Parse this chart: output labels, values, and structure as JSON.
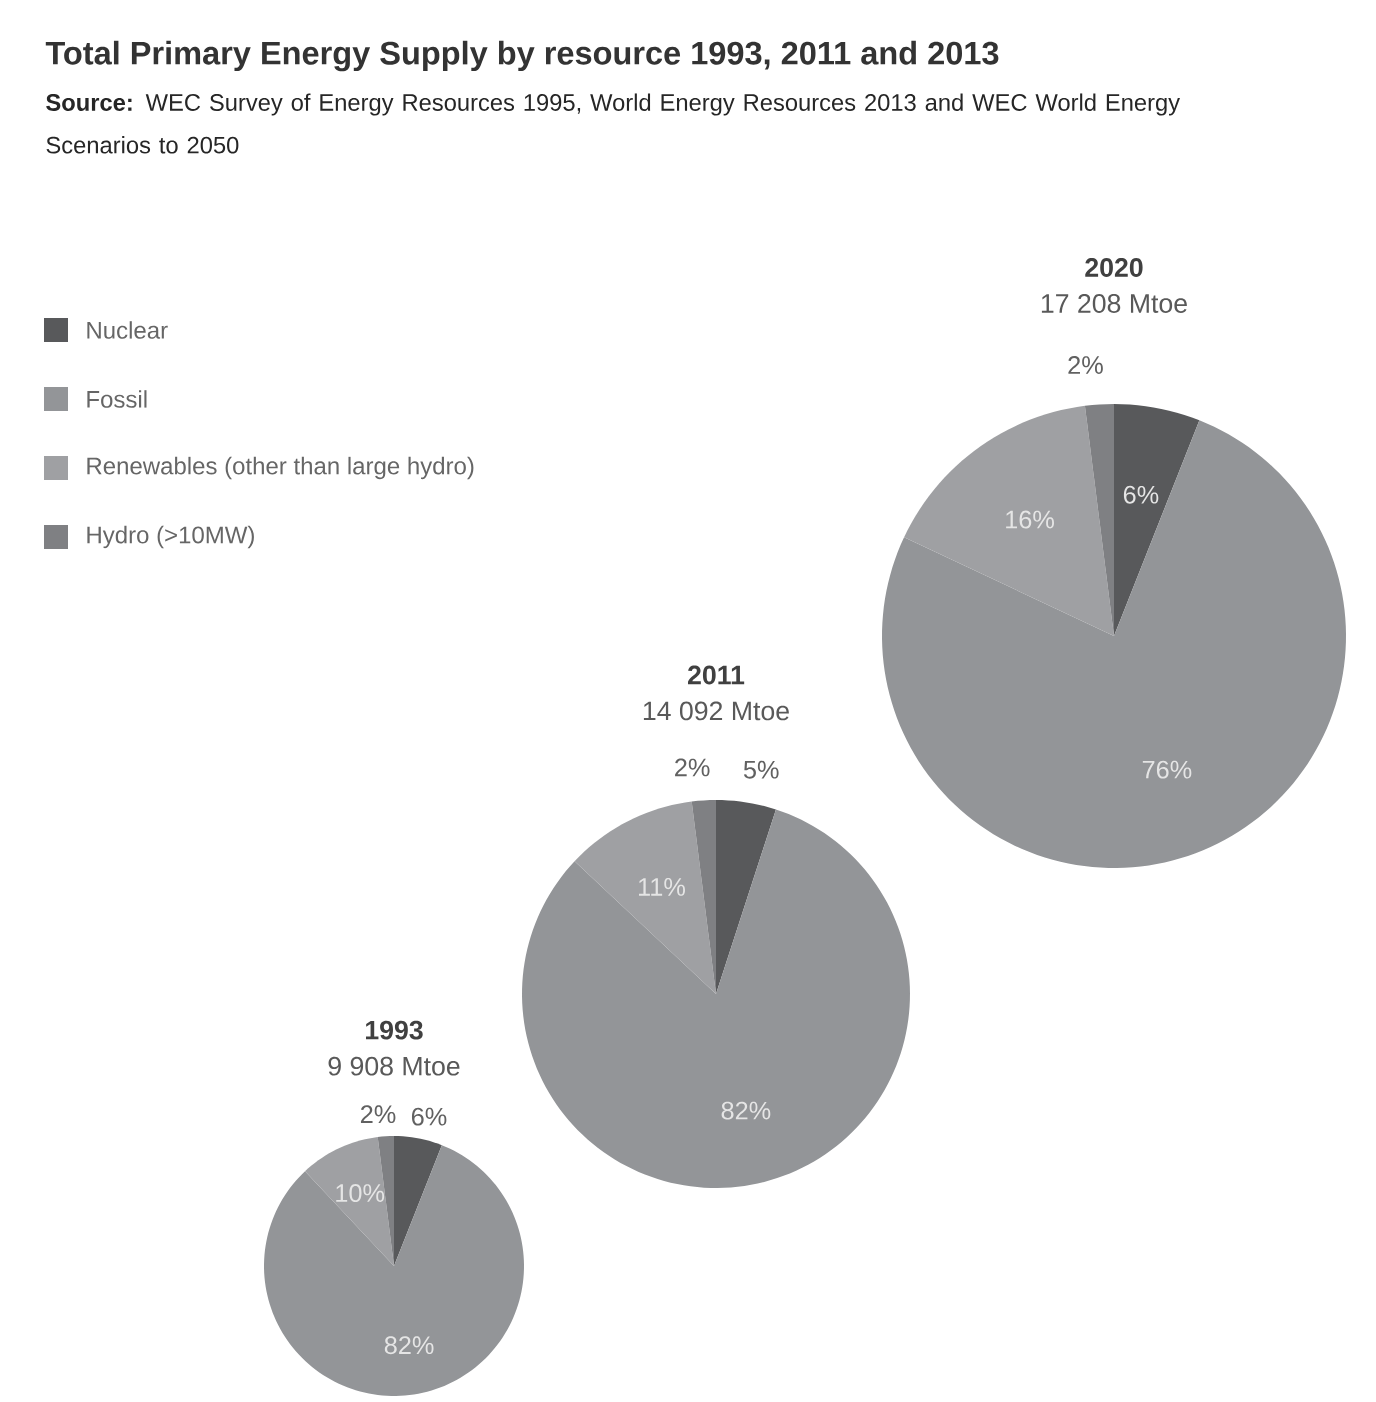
{
  "chart_data": [
    {
      "type": "other",
      "title": "Total Primary Energy Supply by resource 1993, 2011 and 2013",
      "annotations": [
        "**Source:** WEC Survey of Energy Resources 1995, World Energy Resources 2013 and WEC World Energy Scenarios to 2050"
      ]
    },
    {
      "type": "pie",
      "title": "1993",
      "subtitle": "9 908 Mtoe",
      "categories": [
        "Nuclear",
        "Fossil",
        "Renewables (other than large hydro)",
        "Hydro (>10MW)"
      ],
      "values": [
        6,
        82,
        10,
        2
      ],
      "value_labels": [
        "6%",
        "82%",
        "10%",
        "2%"
      ],
      "colors": [
        "#58595b",
        "#939598",
        "#9fa0a3",
        "#7f8083"
      ],
      "legend": "top left"
    },
    {
      "type": "pie",
      "title": "2011",
      "subtitle": "14 092 Mtoe",
      "categories": [
        null,
        null,
        null,
        null
      ],
      "values": [
        5,
        82,
        11,
        2
      ],
      "value_labels": [
        "5%",
        "82%",
        "11%",
        "2%"
      ],
      "colors": [
        "#58595b",
        "#939598",
        "#9fa0a3",
        "#7f8083"
      ]
    },
    {
      "type": "pie",
      "title": "2020",
      "subtitle": "17 208 Mtoe",
      "categories": [
        null,
        null,
        null,
        null
      ],
      "values": [
        6,
        76,
        16,
        2
      ],
      "value_labels": [
        "6%",
        "76%",
        "16%",
        "2%"
      ],
      "colors": [
        "#58595b",
        "#939598",
        "#9fa0a3",
        "#7f8083"
      ]
    }
  ]
}
